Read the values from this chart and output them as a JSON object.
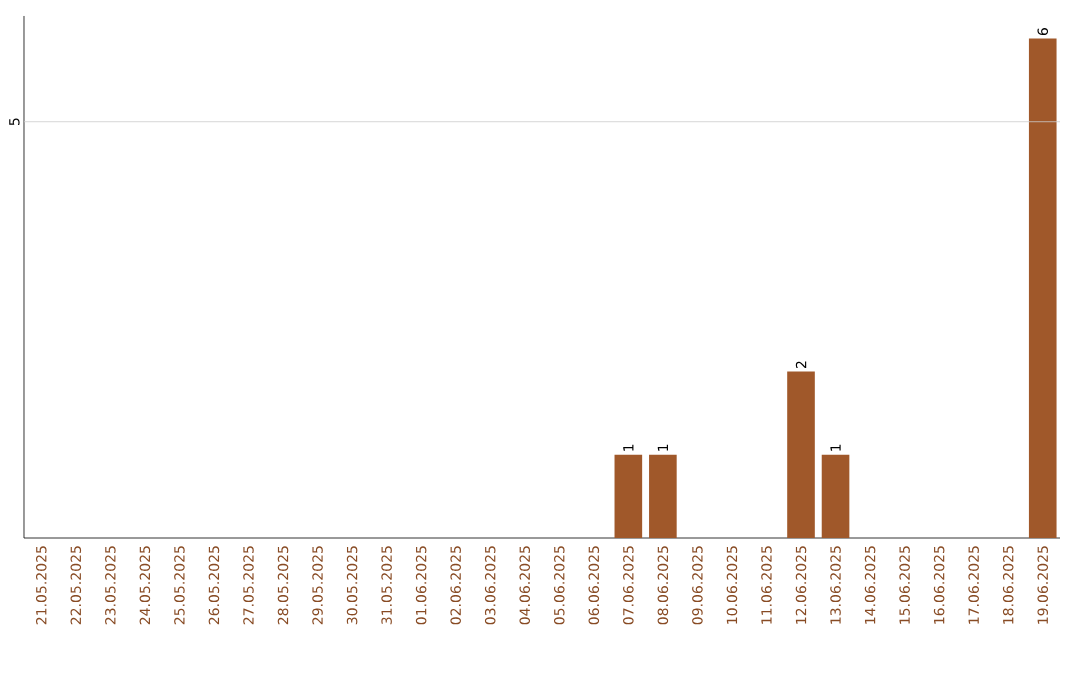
{
  "chart_data": {
    "type": "bar",
    "categories": [
      "21.05.2025",
      "22.05.2025",
      "23.05.2025",
      "24.05.2025",
      "25.05.2025",
      "26.05.2025",
      "27.05.2025",
      "28.05.2025",
      "29.05.2025",
      "30.05.2025",
      "31.05.2025",
      "01.06.2025",
      "02.06.2025",
      "03.06.2025",
      "04.06.2025",
      "05.06.2025",
      "06.06.2025",
      "07.06.2025",
      "08.06.2025",
      "09.06.2025",
      "10.06.2025",
      "11.06.2025",
      "12.06.2025",
      "13.06.2025",
      "14.06.2025",
      "15.06.2025",
      "16.06.2025",
      "17.06.2025",
      "18.06.2025",
      "19.06.2025"
    ],
    "values": [
      null,
      null,
      null,
      null,
      null,
      null,
      null,
      null,
      null,
      null,
      null,
      null,
      null,
      null,
      null,
      null,
      null,
      1,
      1,
      null,
      null,
      null,
      2,
      1,
      null,
      null,
      null,
      null,
      null,
      6
    ],
    "value_labels": [
      null,
      null,
      null,
      null,
      null,
      null,
      null,
      null,
      null,
      null,
      null,
      null,
      null,
      null,
      null,
      null,
      null,
      "1",
      "1",
      null,
      null,
      null,
      "2",
      "1",
      null,
      null,
      null,
      null,
      null,
      "6"
    ],
    "color": "#a0582a",
    "ylim": [
      0,
      6.27
    ],
    "ref_lines": [
      {
        "axis": "y",
        "value": 5,
        "label": "5",
        "color": "#cccccc"
      }
    ]
  }
}
